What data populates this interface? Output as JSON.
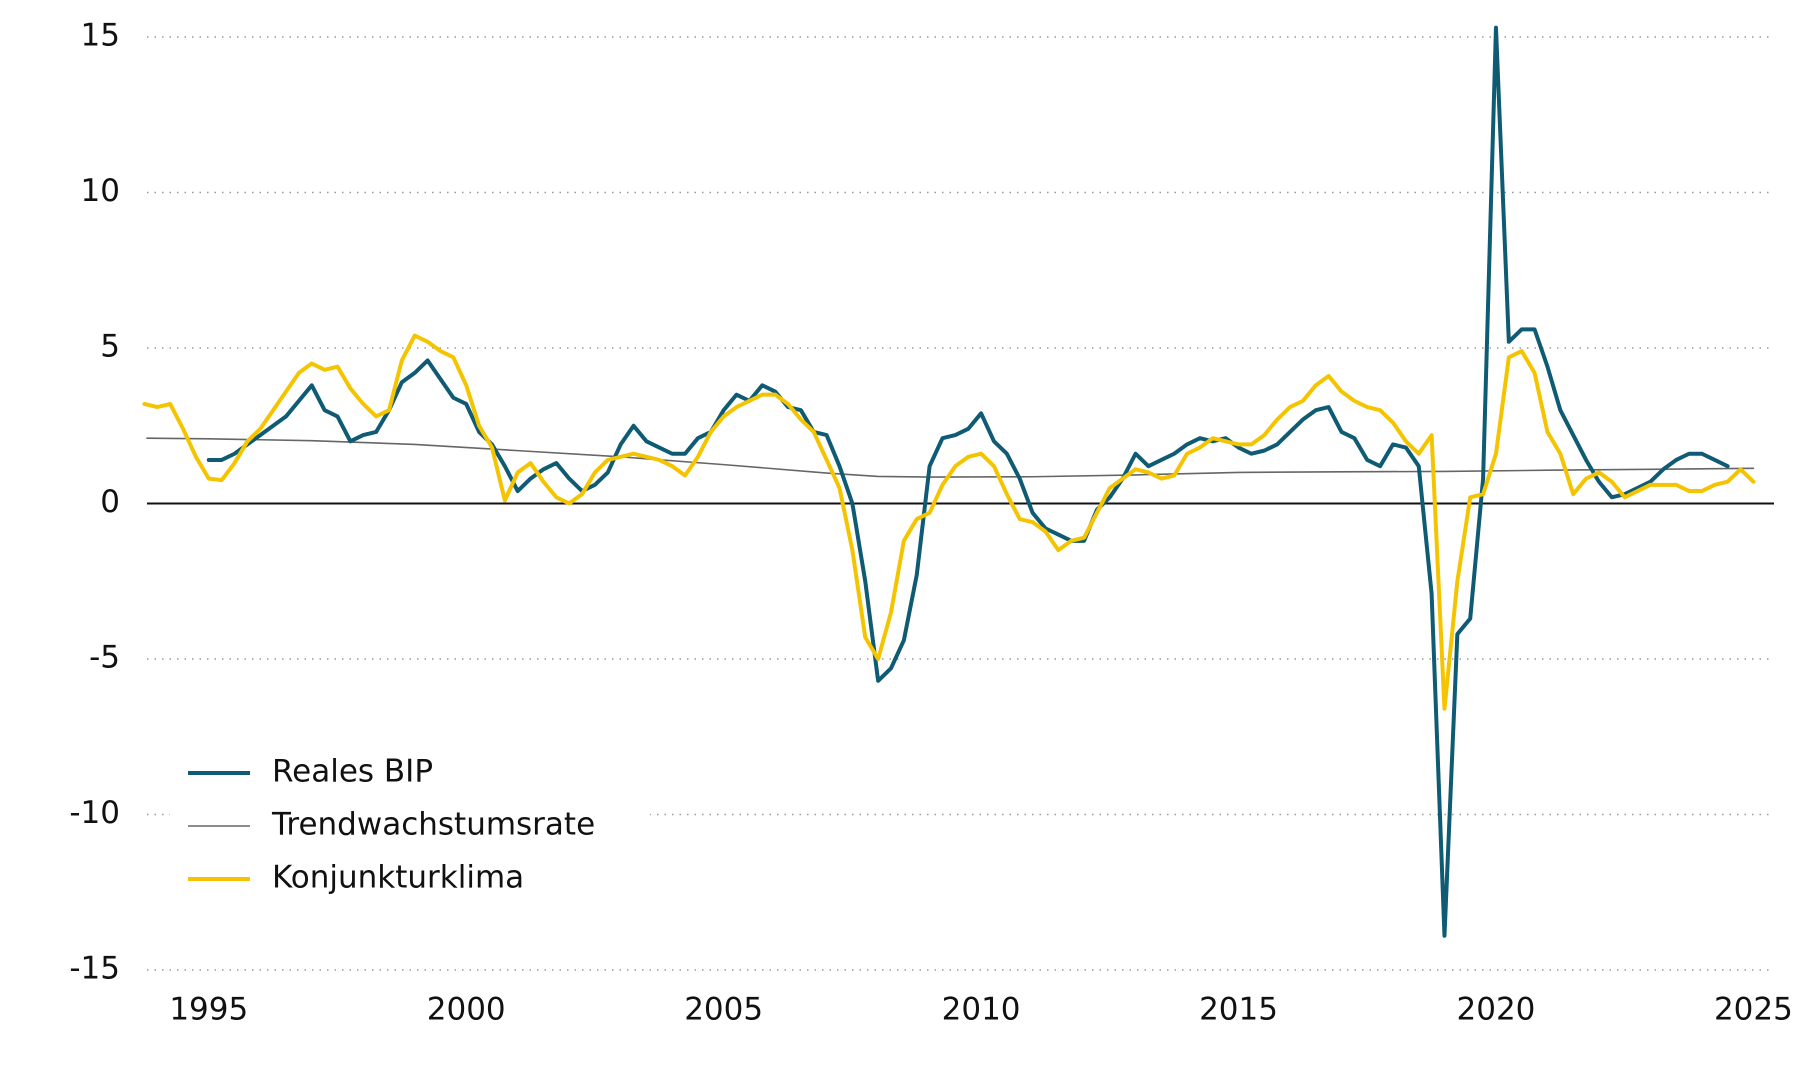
{
  "chart_data": {
    "type": "line",
    "xlim": [
      1993.8,
      2025.4
    ],
    "xticks": [
      1995,
      2000,
      2005,
      2010,
      2015,
      2020,
      2025
    ],
    "ylim": [
      -15,
      15
    ],
    "yticks": [
      15,
      10,
      5,
      0,
      -5,
      -10,
      -15
    ],
    "grid": true,
    "legend": "lower left",
    "series": [
      {
        "name": "Reales BIP",
        "color": "#0e5b73",
        "line_width": 4,
        "x": [
          1995,
          1995.25,
          1995.5,
          1995.75,
          1996,
          1996.25,
          1996.5,
          1996.75,
          1997,
          1997.25,
          1997.5,
          1997.75,
          1998,
          1998.25,
          1998.5,
          1998.75,
          1999,
          1999.25,
          1999.5,
          1999.75,
          2000,
          2000.25,
          2000.5,
          2000.75,
          2001,
          2001.25,
          2001.5,
          2001.75,
          2002,
          2002.25,
          2002.5,
          2002.75,
          2003,
          2003.25,
          2003.5,
          2003.75,
          2004,
          2004.25,
          2004.5,
          2004.75,
          2005,
          2005.25,
          2005.5,
          2005.75,
          2006,
          2006.25,
          2006.5,
          2006.75,
          2007,
          2007.25,
          2007.5,
          2007.75,
          2008,
          2008.25,
          2008.5,
          2008.75,
          2009,
          2009.25,
          2009.5,
          2009.75,
          2010,
          2010.25,
          2010.5,
          2010.75,
          2011,
          2011.25,
          2011.5,
          2011.75,
          2012,
          2012.25,
          2012.5,
          2012.75,
          2013,
          2013.25,
          2013.5,
          2013.75,
          2014,
          2014.25,
          2014.5,
          2014.75,
          2015,
          2015.25,
          2015.5,
          2015.75,
          2016,
          2016.25,
          2016.5,
          2016.75,
          2017,
          2017.25,
          2017.5,
          2017.75,
          2018,
          2018.25,
          2018.5,
          2018.75,
          2019,
          2019.25,
          2019.5,
          2019.75,
          2020,
          2020.25,
          2020.5,
          2020.75,
          2021,
          2021.25,
          2021.5,
          2021.75,
          2022,
          2022.25,
          2022.5,
          2022.75,
          2023,
          2023.25,
          2023.5,
          2023.75,
          2024,
          2024.25,
          2024.5
        ],
        "values": [
          1.4,
          1.4,
          1.6,
          1.9,
          2.2,
          2.5,
          2.8,
          3.3,
          3.8,
          3.0,
          2.8,
          2.0,
          2.2,
          2.3,
          3.0,
          3.9,
          4.2,
          4.6,
          4.0,
          3.4,
          3.2,
          2.3,
          1.9,
          1.2,
          0.4,
          0.8,
          1.1,
          1.3,
          0.8,
          0.4,
          0.6,
          1.0,
          1.9,
          2.5,
          2.0,
          1.8,
          1.6,
          1.6,
          2.1,
          2.3,
          3.0,
          3.5,
          3.3,
          3.8,
          3.6,
          3.1,
          3.0,
          2.3,
          2.2,
          1.2,
          0.0,
          -2.5,
          -5.7,
          -5.3,
          -4.4,
          -2.3,
          1.2,
          2.1,
          2.2,
          2.4,
          2.9,
          2.0,
          1.6,
          0.8,
          -0.3,
          -0.8,
          -1.0,
          -1.2,
          -1.2,
          -0.2,
          0.2,
          0.8,
          1.6,
          1.2,
          1.4,
          1.6,
          1.9,
          2.1,
          2.0,
          2.1,
          1.8,
          1.6,
          1.7,
          1.9,
          2.3,
          2.7,
          3.0,
          3.1,
          2.3,
          2.1,
          1.4,
          1.2,
          1.9,
          1.8,
          1.2,
          -2.9,
          -13.9,
          -4.2,
          -3.7,
          0.8,
          15.3,
          5.2,
          5.6,
          5.6,
          4.4,
          3.0,
          2.2,
          1.4,
          0.7,
          0.2,
          0.3,
          0.5,
          0.7,
          1.1,
          1.4,
          1.6,
          1.6,
          1.4,
          1.2
        ]
      },
      {
        "name": "Trendwachstumsrate",
        "color": "#666666",
        "line_width": 1.6,
        "x": [
          1993.8,
          1995,
          1997,
          1999,
          2001,
          2003,
          2005,
          2007,
          2008,
          2009,
          2011,
          2013,
          2015,
          2017,
          2019,
          2021,
          2023,
          2025
        ],
        "values": [
          2.1,
          2.08,
          2.02,
          1.9,
          1.7,
          1.5,
          1.25,
          0.98,
          0.87,
          0.85,
          0.86,
          0.92,
          1.0,
          1.02,
          1.03,
          1.07,
          1.1,
          1.13
        ]
      },
      {
        "name": "Konjunkturklima",
        "color": "#f5c400",
        "line_width": 4,
        "x": [
          1993.75,
          1994,
          1994.25,
          1994.5,
          1994.75,
          1995,
          1995.25,
          1995.5,
          1995.75,
          1996,
          1996.25,
          1996.5,
          1996.75,
          1997,
          1997.25,
          1997.5,
          1997.75,
          1998,
          1998.25,
          1998.5,
          1998.75,
          1999,
          1999.25,
          1999.5,
          1999.75,
          2000,
          2000.25,
          2000.5,
          2000.75,
          2001,
          2001.25,
          2001.5,
          2001.75,
          2002,
          2002.25,
          2002.5,
          2002.75,
          2003,
          2003.25,
          2003.5,
          2003.75,
          2004,
          2004.25,
          2004.5,
          2004.75,
          2005,
          2005.25,
          2005.5,
          2005.75,
          2006,
          2006.25,
          2006.5,
          2006.75,
          2007,
          2007.25,
          2007.5,
          2007.75,
          2008,
          2008.25,
          2008.5,
          2008.75,
          2009,
          2009.25,
          2009.5,
          2009.75,
          2010,
          2010.25,
          2010.5,
          2010.75,
          2011,
          2011.25,
          2011.5,
          2011.75,
          2012,
          2012.25,
          2012.5,
          2012.75,
          2013,
          2013.25,
          2013.5,
          2013.75,
          2014,
          2014.25,
          2014.5,
          2014.75,
          2015,
          2015.25,
          2015.5,
          2015.75,
          2016,
          2016.25,
          2016.5,
          2016.75,
          2017,
          2017.25,
          2017.5,
          2017.75,
          2018,
          2018.25,
          2018.5,
          2018.75,
          2019,
          2019.25,
          2019.5,
          2019.75,
          2020,
          2020.25,
          2020.5,
          2020.75,
          2021,
          2021.25,
          2021.5,
          2021.75,
          2022,
          2022.25,
          2022.5,
          2022.75,
          2023,
          2023.25,
          2023.5,
          2023.75,
          2024,
          2024.25,
          2024.5,
          2024.75,
          2025
        ],
        "values": [
          3.2,
          3.1,
          3.2,
          2.4,
          1.5,
          0.8,
          0.75,
          1.3,
          2.0,
          2.4,
          3.0,
          3.6,
          4.2,
          4.5,
          4.3,
          4.4,
          3.7,
          3.2,
          2.8,
          3.0,
          4.6,
          5.4,
          5.2,
          4.9,
          4.7,
          3.8,
          2.5,
          1.8,
          0.1,
          1.0,
          1.3,
          0.7,
          0.2,
          0.0,
          0.3,
          1.0,
          1.4,
          1.5,
          1.6,
          1.5,
          1.4,
          1.2,
          0.9,
          1.5,
          2.3,
          2.8,
          3.1,
          3.3,
          3.5,
          3.5,
          3.2,
          2.7,
          2.3,
          1.4,
          0.5,
          -1.5,
          -4.3,
          -5.0,
          -3.5,
          -1.2,
          -0.5,
          -0.3,
          0.6,
          1.2,
          1.5,
          1.6,
          1.2,
          0.3,
          -0.5,
          -0.6,
          -0.9,
          -1.5,
          -1.2,
          -1.1,
          -0.3,
          0.5,
          0.8,
          1.1,
          1.0,
          0.8,
          0.9,
          1.6,
          1.8,
          2.1,
          2.0,
          1.9,
          1.9,
          2.2,
          2.7,
          3.1,
          3.3,
          3.8,
          4.1,
          3.6,
          3.3,
          3.1,
          3.0,
          2.6,
          2.0,
          1.6,
          2.2,
          -6.6,
          -2.5,
          0.2,
          0.3,
          1.6,
          4.7,
          4.9,
          4.2,
          2.3,
          1.6,
          0.3,
          0.8,
          1.0,
          0.7,
          0.2,
          0.4,
          0.6,
          0.6,
          0.6,
          0.4,
          0.4,
          0.6,
          0.7,
          1.1,
          0.7
        ]
      }
    ]
  }
}
